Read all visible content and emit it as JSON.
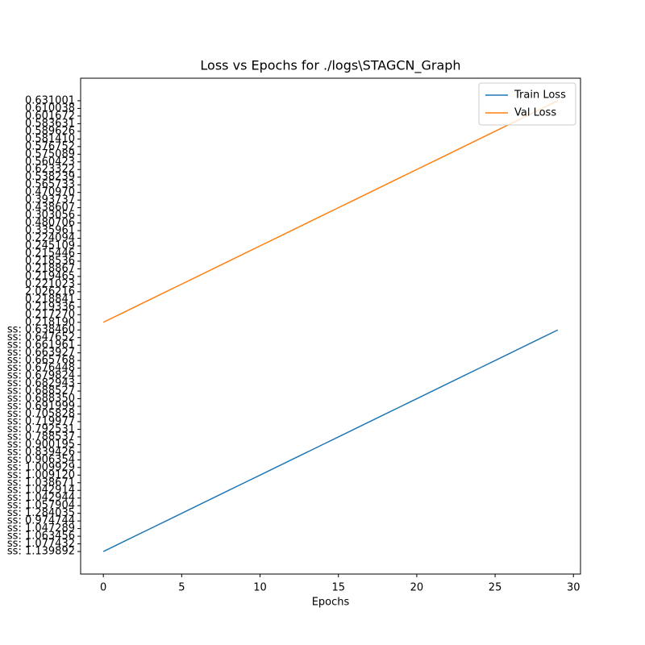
{
  "chart_data": {
    "type": "line",
    "title": "Loss vs Epochs for ./logs\\STAGCN_Graph",
    "x_label": "Epochs",
    "x": [
      0,
      1,
      2,
      3,
      4,
      5,
      6,
      7,
      8,
      9,
      10,
      11,
      12,
      13,
      14,
      15,
      16,
      17,
      18,
      19,
      20,
      21,
      22,
      23,
      24,
      25,
      26,
      27,
      28,
      29
    ],
    "xlim": [
      -1.45,
      30.45
    ],
    "xticks": [
      0,
      5,
      10,
      15,
      20,
      25,
      30
    ],
    "y_categories": [
      "ss: 1.139892",
      "ss: 1.077432",
      "ss: 1.063456",
      "ss: 1.047289",
      "ss: 0.974744",
      "ss: 1.284035",
      "ss: 1.057904",
      "ss: 1.042944",
      "ss: 1.042914",
      "ss: 1.038671",
      "ss: 1.009120",
      "ss: 1.009929",
      "ss: 0.906354",
      "ss: 0.839426",
      "ss: 0.900195",
      "ss: 0.788537",
      "ss: 0.792531",
      "ss: 0.719977",
      "ss: 0.705828",
      "ss: 0.691999",
      "ss: 0.688350",
      "ss: 0.688527",
      "ss: 0.682943",
      "ss: 0.679824",
      "ss: 0.676448",
      "ss: 0.665768",
      "ss: 0.663927",
      "ss: 0.661961",
      "ss: 0.647652",
      "ss: 0.638460",
      "0.218190",
      "0.217270",
      "0.219336",
      "0.218841",
      "2.026216",
      "0.221023",
      "0.219465",
      "0.218867",
      "0.218536",
      "0.215446",
      "0.245109",
      "0.224094",
      "0.335961",
      "0.480706",
      "0.303056",
      "0.438607",
      "0.393737",
      "0.470970",
      "0.565733",
      "0.538239",
      "0.623322",
      "0.560423",
      "0.575089",
      "0.576752",
      "0.581410",
      "0.589626",
      "0.583631",
      "0.601672",
      "0.610038",
      "0.631001"
    ],
    "legend": "upper right",
    "series": [
      {
        "name": "Train Loss",
        "color": "#1f77b4",
        "values": [
          "ss: 1.139892",
          "ss: 1.077432",
          "ss: 1.063456",
          "ss: 1.047289",
          "ss: 0.974744",
          "ss: 1.284035",
          "ss: 1.057904",
          "ss: 1.042944",
          "ss: 1.042914",
          "ss: 1.038671",
          "ss: 1.009120",
          "ss: 1.009929",
          "ss: 0.906354",
          "ss: 0.839426",
          "ss: 0.900195",
          "ss: 0.788537",
          "ss: 0.792531",
          "ss: 0.719977",
          "ss: 0.705828",
          "ss: 0.691999",
          "ss: 0.688350",
          "ss: 0.688527",
          "ss: 0.682943",
          "ss: 0.679824",
          "ss: 0.676448",
          "ss: 0.665768",
          "ss: 0.663927",
          "ss: 0.661961",
          "ss: 0.647652",
          "ss: 0.638460"
        ]
      },
      {
        "name": "Val Loss",
        "color": "#ff7f0e",
        "values": [
          "0.218190",
          "0.217270",
          "0.219336",
          "0.218841",
          "2.026216",
          "0.221023",
          "0.219465",
          "0.218867",
          "0.218536",
          "0.215446",
          "0.245109",
          "0.224094",
          "0.335961",
          "0.480706",
          "0.303056",
          "0.438607",
          "0.393737",
          "0.470970",
          "0.565733",
          "0.538239",
          "0.623322",
          "0.560423",
          "0.575089",
          "0.576752",
          "0.581410",
          "0.589626",
          "0.583631",
          "0.601672",
          "0.610038",
          "0.631001"
        ]
      }
    ]
  }
}
